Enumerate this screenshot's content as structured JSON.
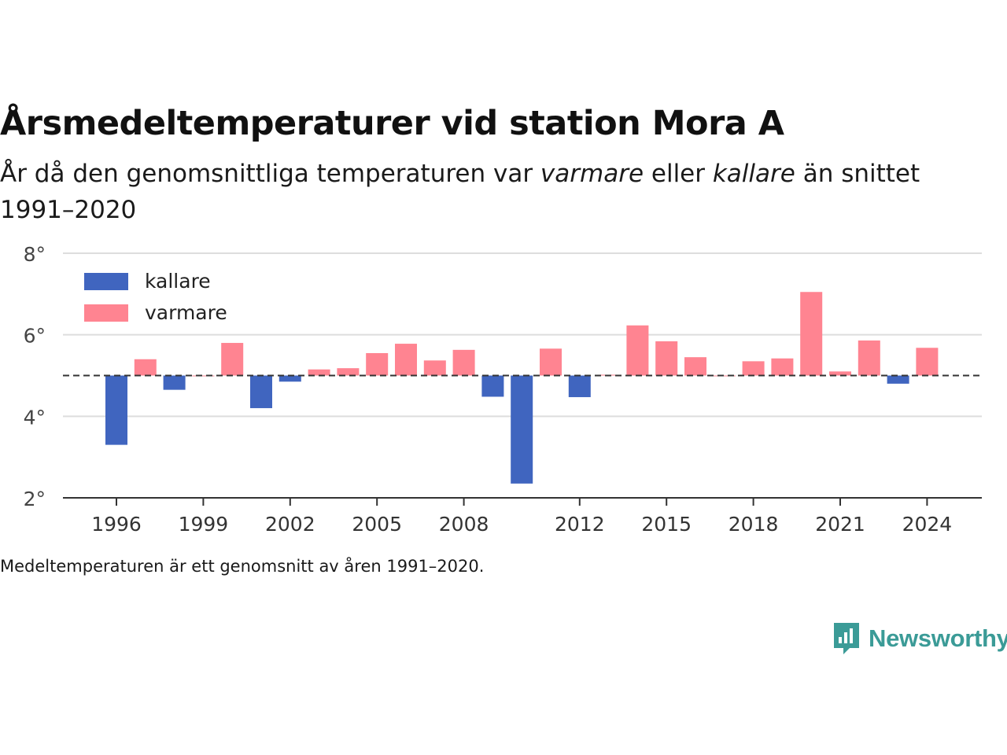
{
  "title": "Årsmedeltemperaturer vid station Mora A",
  "subtitle": {
    "part1": "År då den genomsnittliga temperaturen var ",
    "warm_word": "varmare",
    "part2": " eller ",
    "cold_word": "kallare",
    "part3": " än snittet 1991–2020"
  },
  "note": "Medeltemperaturen är ett genomsnitt av åren 1991–2020.",
  "brand": {
    "name": "Newsworthy",
    "icon": "newsworthy-chart-bubble-icon",
    "color": "#3b9b97"
  },
  "colors": {
    "cold": "#4065bf",
    "warm": "#ff8491",
    "grid": "#dddddd",
    "axis": "#333333",
    "baseline": "#333333"
  },
  "chart_data": {
    "type": "bar",
    "title": "Årsmedeltemperaturer vid station Mora A",
    "baseline": 5.0,
    "ylim": [
      2,
      8
    ],
    "yticks": [
      2,
      4,
      6,
      8
    ],
    "ytick_labels": [
      "2°",
      "4°",
      "6°",
      "8°"
    ],
    "xticks": [
      1996,
      1999,
      2002,
      2005,
      2008,
      2012,
      2015,
      2018,
      2021,
      2024
    ],
    "grid": true,
    "legend": {
      "position": "top-left",
      "entries": [
        {
          "name": "kallare",
          "color": "#4065bf"
        },
        {
          "name": "varmare",
          "color": "#ff8491"
        }
      ]
    },
    "years": [
      1996,
      1997,
      1998,
      1999,
      2000,
      2001,
      2002,
      2003,
      2004,
      2005,
      2006,
      2007,
      2008,
      2009,
      2010,
      2011,
      2012,
      2013,
      2014,
      2015,
      2016,
      2017,
      2018,
      2019,
      2020,
      2021,
      2022,
      2023,
      2024
    ],
    "values": [
      3.3,
      5.4,
      4.65,
      5.0,
      5.8,
      4.2,
      4.85,
      5.15,
      5.18,
      5.55,
      5.78,
      5.37,
      5.63,
      4.48,
      2.35,
      5.66,
      4.47,
      5.02,
      6.23,
      5.84,
      5.45,
      5.0,
      5.35,
      5.42,
      7.05,
      5.1,
      5.86,
      4.8,
      5.68
    ]
  }
}
